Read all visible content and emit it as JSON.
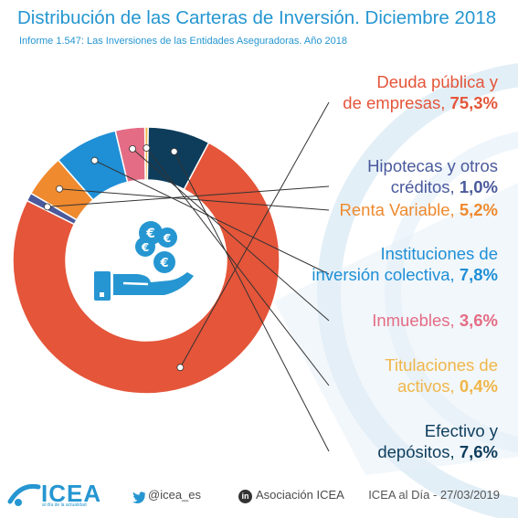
{
  "header": {
    "title": "Distribución de las Carteras de Inversión. Diciembre 2018",
    "subtitle": "Informe 1.547: Las Inversiones de las Entidades Aseguradoras. Año 2018"
  },
  "chart_data": {
    "type": "pie",
    "title": "Distribución de las Carteras de Inversión. Diciembre 2018",
    "subtitle": "Informe 1.547: Las Inversiones de las Entidades Aseguradoras. Año 2018",
    "slices": [
      {
        "line1": "Deuda pública y",
        "line2": "de empresas, ",
        "pct_text": "75,3%",
        "value": 75.3,
        "color": "#e4553a"
      },
      {
        "line1": "Hipotecas y otros",
        "line2": "créditos, ",
        "pct_text": "1,0%",
        "value": 1.0,
        "color": "#4a5a9c"
      },
      {
        "line1": "",
        "line2": "Renta Variable, ",
        "pct_text": "5,2%",
        "value": 5.2,
        "color": "#ef8a2e"
      },
      {
        "line1": "Instituciones de",
        "line2": "inversión colectiva, ",
        "pct_text": "7,8%",
        "value": 7.8,
        "color": "#1f8fd6"
      },
      {
        "line1": "",
        "line2": "Inmuebles, ",
        "pct_text": "3,6%",
        "value": 3.6,
        "color": "#e46c84"
      },
      {
        "line1": "Titulaciones de",
        "line2": "activos, ",
        "pct_text": "0,4%",
        "value": 0.4,
        "color": "#f0b64a"
      },
      {
        "line1": "Efectivo y",
        "line2": "depósitos, ",
        "pct_text": "7,6%",
        "value": 7.6,
        "color": "#0e3d5c"
      }
    ]
  },
  "footer": {
    "logo": "ICEA",
    "logo_tagline": "al día de la actualidad",
    "twitter": "@icea_es",
    "linkedin_badge": "in",
    "linkedin": "Asociación ICEA",
    "date": "ICEA al Día - 27/03/2019"
  },
  "icons": {
    "center": "hand-with-euro-coins-icon",
    "twitter": "twitter-bird-icon",
    "linkedin": "linkedin-icon"
  }
}
